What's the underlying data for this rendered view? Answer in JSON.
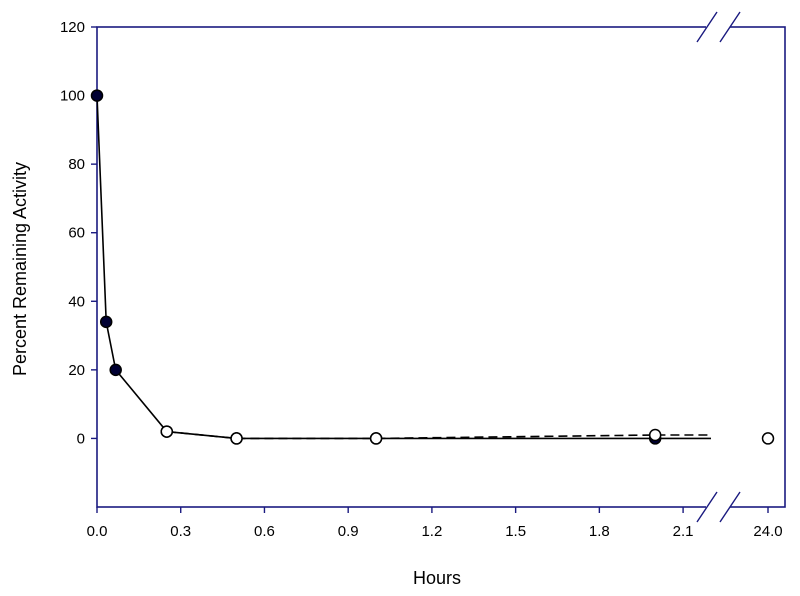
{
  "chart_data": {
    "type": "line",
    "title": "",
    "xlabel": "Hours",
    "ylabel": "Percent Remaining Activity",
    "grid": false,
    "legend": "none",
    "axis_break": {
      "from": 2.2,
      "to": 24.0
    },
    "xlim_left": [
      0.0,
      2.2
    ],
    "xlim_right_tick": 24.0,
    "ylim": [
      -20,
      120
    ],
    "x_ticks": [
      {
        "value": 0.0,
        "label": "0.0"
      },
      {
        "value": 0.3,
        "label": "0.3"
      },
      {
        "value": 0.6,
        "label": "0.6"
      },
      {
        "value": 0.9,
        "label": "0.9"
      },
      {
        "value": 1.2,
        "label": "1.2"
      },
      {
        "value": 1.5,
        "label": "1.5"
      },
      {
        "value": 1.8,
        "label": "1.8"
      },
      {
        "value": 2.1,
        "label": "2.1"
      },
      {
        "value": 24.0,
        "label": "24.0"
      }
    ],
    "y_ticks": [
      {
        "value": 0,
        "label": "0"
      },
      {
        "value": 20,
        "label": "20"
      },
      {
        "value": 40,
        "label": "40"
      },
      {
        "value": 60,
        "label": "60"
      },
      {
        "value": 80,
        "label": "80"
      },
      {
        "value": 100,
        "label": "100"
      },
      {
        "value": 120,
        "label": "120"
      }
    ],
    "series": [
      {
        "marker": "filled-circle",
        "line_style": "solid",
        "color": "#000000",
        "x": [
          0.0,
          0.033,
          0.067,
          0.25,
          0.5,
          1.0,
          2.0
        ],
        "y": [
          100,
          34,
          20,
          2,
          0,
          0,
          0
        ],
        "trailing_line_to": 2.2
      },
      {
        "marker": "open-circle",
        "line_style": "dashed",
        "color": "#000000",
        "x": [
          0.25,
          0.5,
          1.0,
          2.0,
          24.0
        ],
        "y": [
          2,
          0,
          0,
          1,
          0
        ],
        "trailing_line_to": 2.2
      }
    ],
    "axis_color": "#1a1a80"
  }
}
